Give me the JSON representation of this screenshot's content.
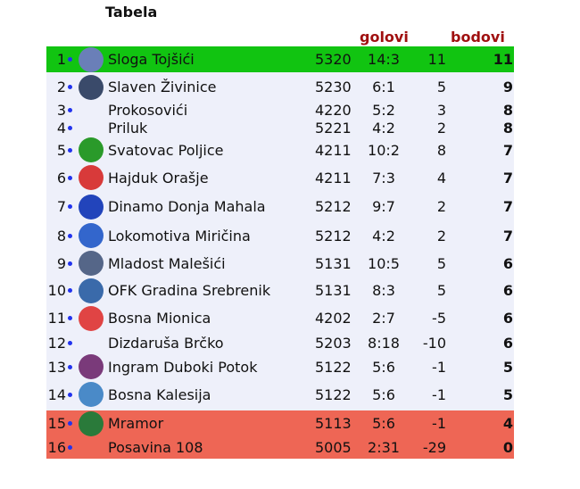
{
  "title": "Tabela",
  "headers": {
    "goals": "golovi",
    "points": "bodovi"
  },
  "colors": {
    "promotion": "#11c411",
    "relegation": "#ee6655",
    "header": "#a01010",
    "dot": "#2233ee"
  },
  "rows": [
    {
      "rank": "1",
      "name": "Sloga Tojšići",
      "record": "5320",
      "goals": "14:3",
      "diff": "11",
      "points": "11",
      "zone": "promo",
      "logo": "#6a7fb8"
    },
    {
      "rank": "2",
      "name": "Slaven Živinice",
      "record": "5230",
      "goals": "6:1",
      "diff": "5",
      "points": "9",
      "logo": "#3a4a6a"
    },
    {
      "rank": "3",
      "name": "Prokosovići",
      "record": "4220",
      "goals": "5:2",
      "diff": "3",
      "points": "8"
    },
    {
      "rank": "4",
      "name": "Priluk",
      "record": "5221",
      "goals": "4:2",
      "diff": "2",
      "points": "8"
    },
    {
      "rank": "5",
      "name": "Svatovac Poljice",
      "record": "4211",
      "goals": "10:2",
      "diff": "8",
      "points": "7",
      "logo": "#2a9a2a"
    },
    {
      "rank": "6",
      "name": "Hajduk Orašje",
      "record": "4211",
      "goals": "7:3",
      "diff": "4",
      "points": "7",
      "logo": "#d83a3a"
    },
    {
      "rank": "7",
      "name": "Dinamo Donja Mahala",
      "record": "5212",
      "goals": "9:7",
      "diff": "2",
      "points": "7",
      "logo": "#2244bb"
    },
    {
      "rank": "8",
      "name": "Lokomotiva Miričina",
      "record": "5212",
      "goals": "4:2",
      "diff": "2",
      "points": "7",
      "logo": "#3366cc"
    },
    {
      "rank": "9",
      "name": "Mladost Malešići",
      "record": "5131",
      "goals": "10:5",
      "diff": "5",
      "points": "6",
      "logo": "#556688"
    },
    {
      "rank": "10",
      "name": "OFK Gradina Srebrenik",
      "record": "5131",
      "goals": "8:3",
      "diff": "5",
      "points": "6",
      "logo": "#3a6aaa"
    },
    {
      "rank": "11",
      "name": "Bosna Mionica",
      "record": "4202",
      "goals": "2:7",
      "diff": "-5",
      "points": "6",
      "logo": "#e04444"
    },
    {
      "rank": "12",
      "name": "Dizdaruša Brčko",
      "record": "5203",
      "goals": "8:18",
      "diff": "-10",
      "points": "6"
    },
    {
      "rank": "13",
      "name": "Ingram Duboki Potok",
      "record": "5122",
      "goals": "5:6",
      "diff": "-1",
      "points": "5",
      "logo": "#7a3a7a"
    },
    {
      "rank": "14",
      "name": "Bosna Kalesija",
      "record": "5122",
      "goals": "5:6",
      "diff": "-1",
      "points": "5",
      "logo": "#4a8ac8"
    },
    {
      "rank": "15",
      "name": "Mramor",
      "record": "5113",
      "goals": "5:6",
      "diff": "-1",
      "points": "4",
      "zone": "releg",
      "logo": "#2a7a3a"
    },
    {
      "rank": "16",
      "name": "Posavina 108",
      "record": "5005",
      "goals": "2:31",
      "diff": "-29",
      "points": "0",
      "zone": "releg"
    }
  ]
}
